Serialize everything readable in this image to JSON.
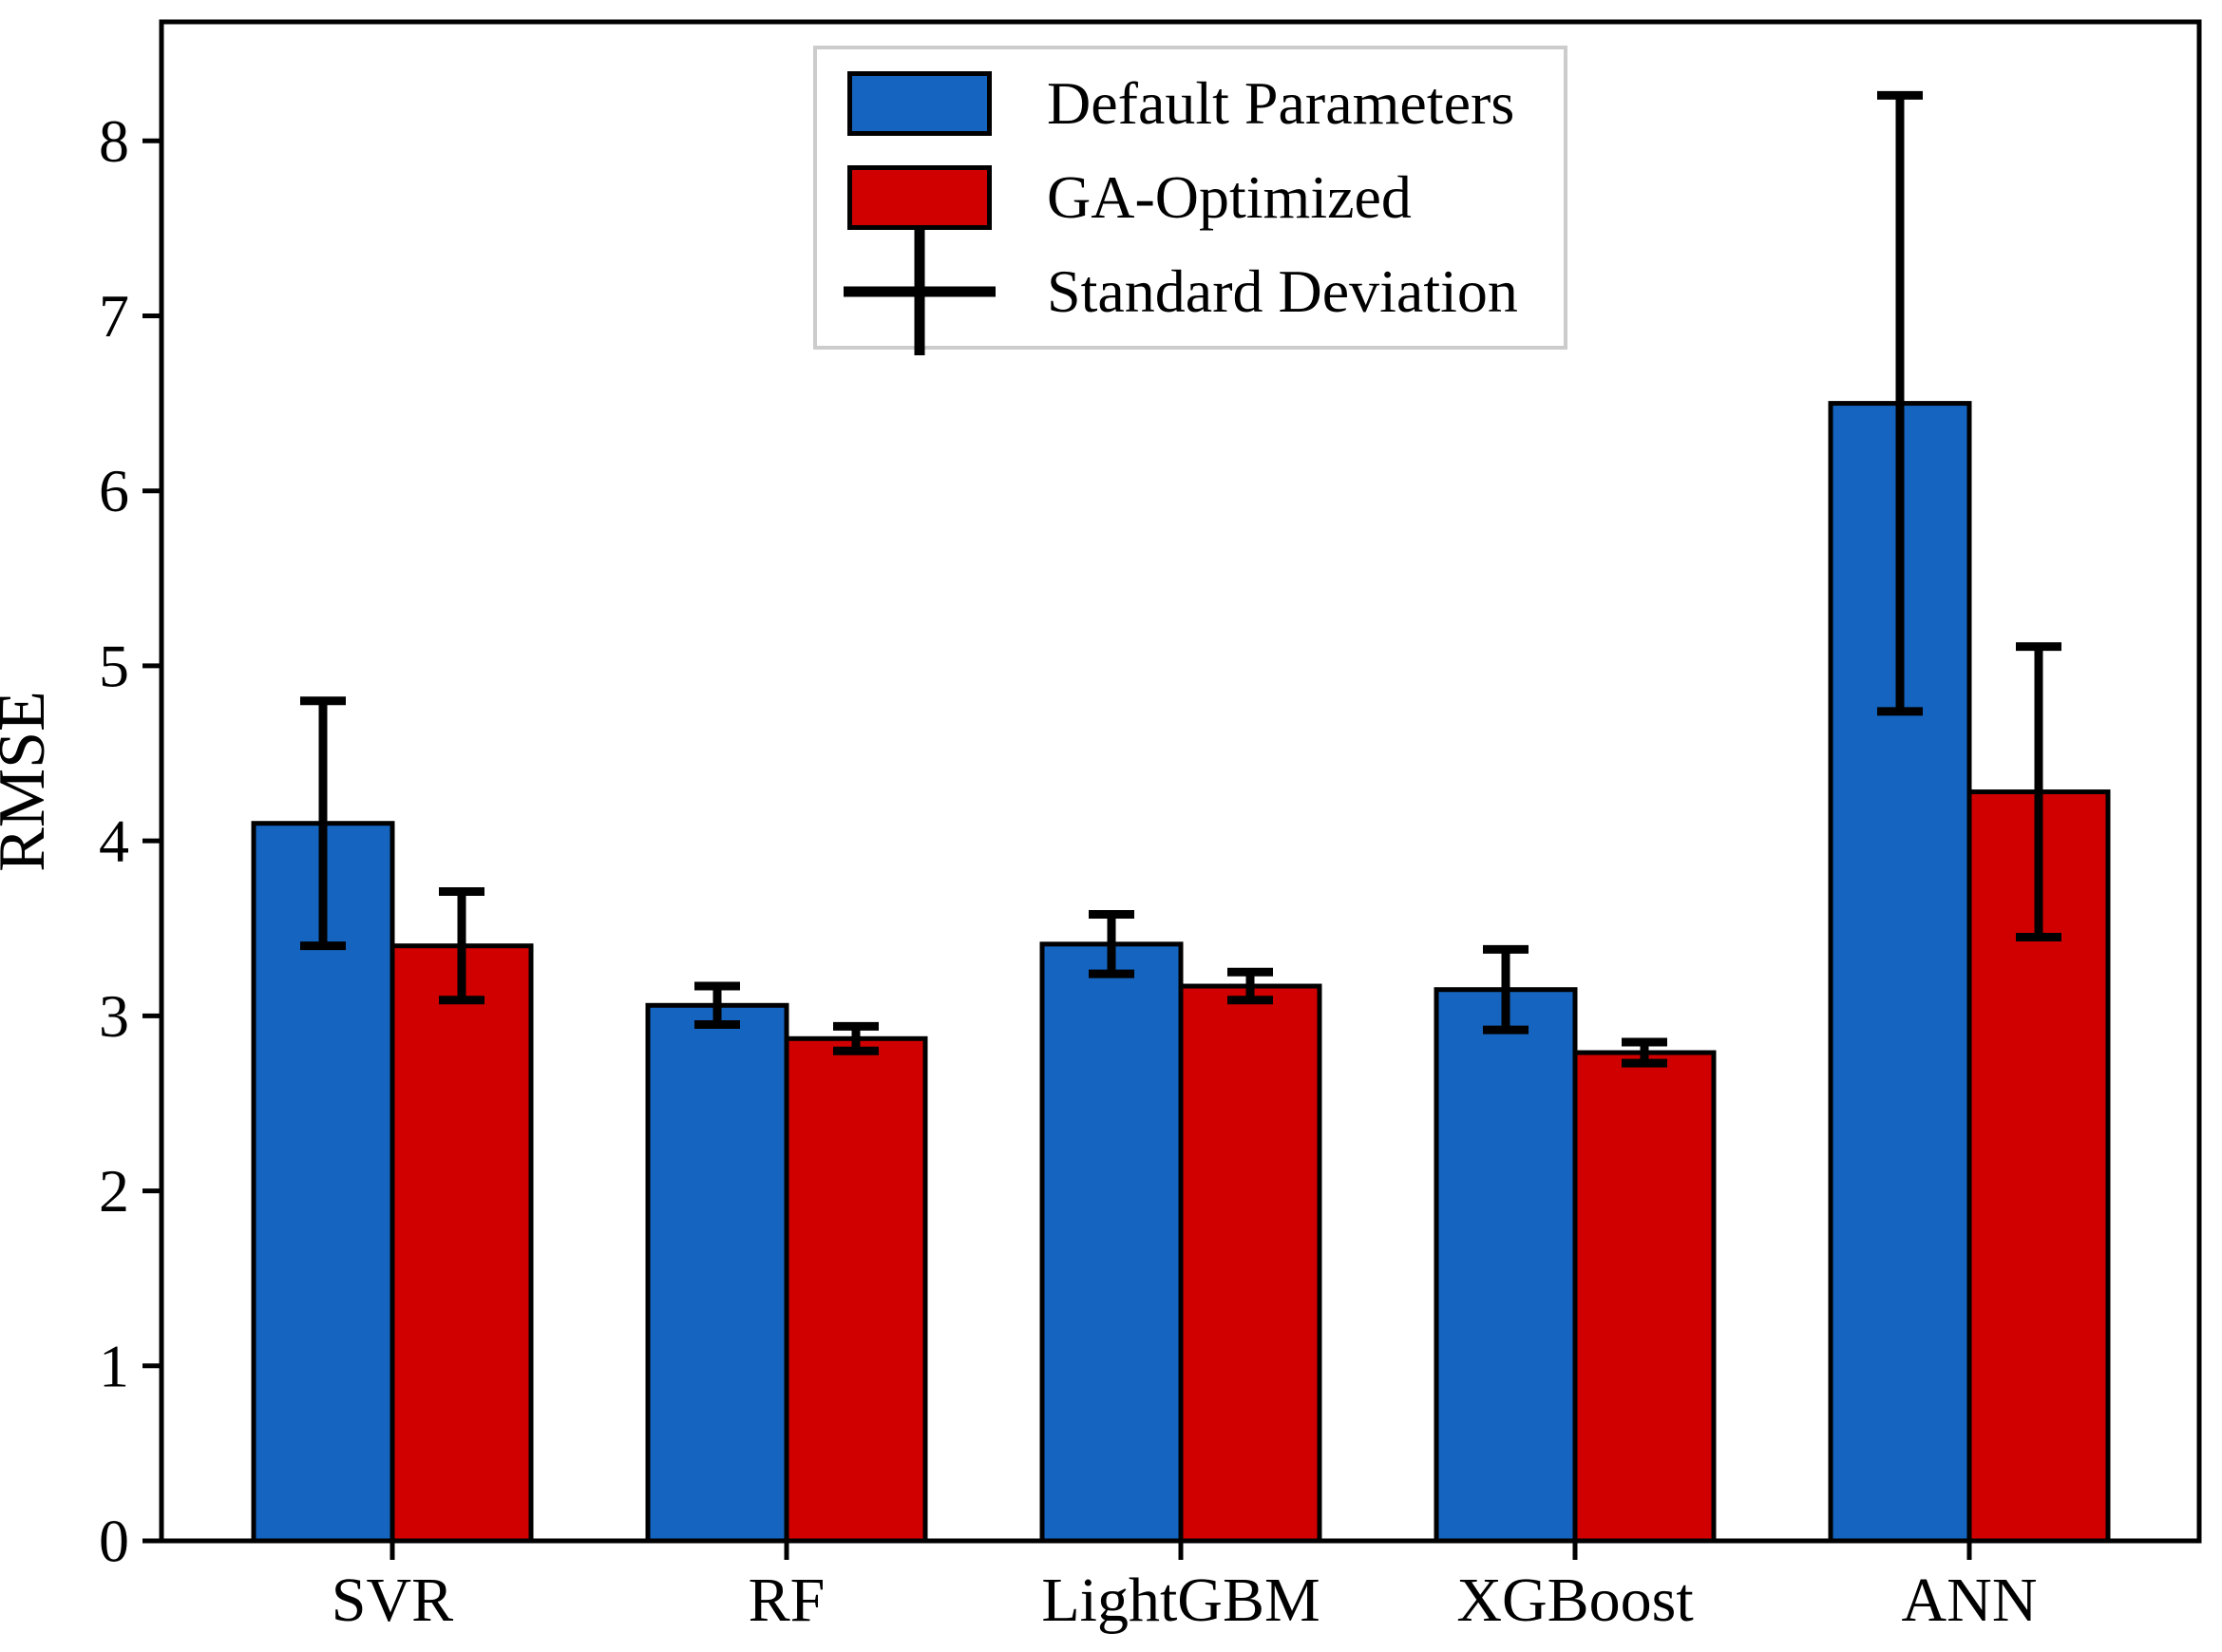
{
  "figure": {
    "background": "#ffffff",
    "text_color": "#000000",
    "frame_color": "#000000"
  },
  "chart_data": {
    "type": "bar",
    "title": "",
    "xlabel": "",
    "ylabel": "RMSE",
    "categories": [
      "SVR",
      "RF",
      "LightGBM",
      "XGBoost",
      "ANN"
    ],
    "series": [
      {
        "name": "Default Parameters",
        "color": "#1565C0",
        "values": [
          4.1,
          3.06,
          3.41,
          3.15,
          6.5
        ],
        "errors": [
          0.7,
          0.11,
          0.17,
          0.23,
          1.76
        ]
      },
      {
        "name": "GA-Optimized",
        "color": "#D00000",
        "values": [
          3.4,
          2.87,
          3.17,
          2.79,
          4.28
        ],
        "errors": [
          0.31,
          0.07,
          0.08,
          0.06,
          0.83
        ]
      }
    ],
    "error_bar_color": "#000000",
    "yticks": [
      0,
      1,
      2,
      3,
      4,
      5,
      6,
      7,
      8
    ],
    "ylim": [
      0,
      8.68
    ],
    "grid": false,
    "legend": {
      "position": "upper center",
      "entries": [
        {
          "type": "swatch",
          "color": "#1565C0",
          "label": "Default Parameters"
        },
        {
          "type": "swatch",
          "color": "#D00000",
          "label": "GA-Optimized"
        },
        {
          "type": "errorbar",
          "color": "#000000",
          "label": "Standard Deviation"
        }
      ]
    }
  }
}
